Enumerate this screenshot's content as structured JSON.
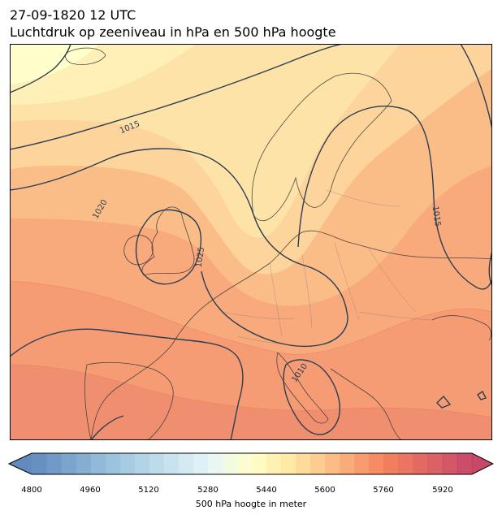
{
  "header": {
    "timestamp": "27-09-1820 12 UTC",
    "subtitle": "Luchtdruk op zeeniveau in hPa en 500 hPa hoogte"
  },
  "map": {
    "region": "Europe",
    "isobar_color": "#2c3e50",
    "isobar_labels": [
      "1015",
      "1020",
      "1025",
      "1015",
      "1010"
    ],
    "isobar_levels_hpa": [
      1010,
      1015,
      1020,
      1025
    ]
  },
  "colorbar": {
    "label": "500 hPa hoogte in meter",
    "min": 4800,
    "max": 6000,
    "step": 40,
    "ticks": [
      "4800",
      "4960",
      "5120",
      "5280",
      "5440",
      "5600",
      "5760",
      "5920"
    ],
    "extend": "both",
    "colormap": "RdYlBu_r"
  }
}
